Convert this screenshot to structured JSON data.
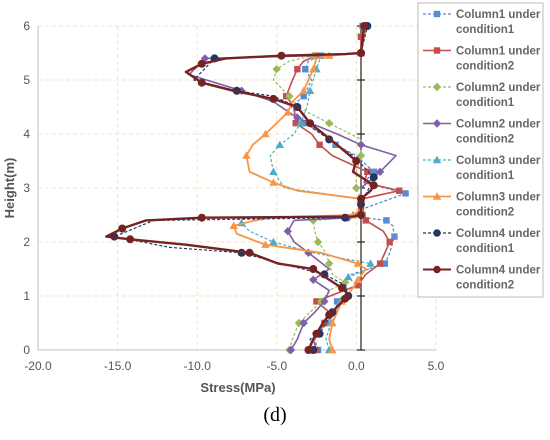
{
  "panel_label": "(d)",
  "chart_data": {
    "type": "line",
    "title": "",
    "xlabel": "Stress(MPa)",
    "ylabel": "Height(m)",
    "xlim": [
      -20.0,
      5.0
    ],
    "ylim": [
      0,
      6
    ],
    "xticks": [
      "-20.0",
      "-15.0",
      "-10.0",
      "-5.0",
      "0.0",
      "5.0"
    ],
    "yticks": [
      "0",
      "1",
      "2",
      "3",
      "4",
      "5",
      "6"
    ],
    "grid": true,
    "legend_position": "right",
    "series": [
      {
        "name": "Column1 under condition1",
        "color": "#5b8bd0",
        "marker": "square",
        "dash": true,
        "width": 1.3,
        "points": [
          [
            -2.7,
            0
          ],
          [
            -2.9,
            0.2
          ],
          [
            -2.2,
            0.5
          ],
          [
            -1.6,
            0.7
          ],
          [
            -1.5,
            0.9
          ],
          [
            -0.9,
            1.05
          ],
          [
            -1.1,
            1.2
          ],
          [
            -0.6,
            1.4
          ],
          [
            1.5,
            1.6
          ],
          [
            1.8,
            1.8
          ],
          [
            2.1,
            2.1
          ],
          [
            2.0,
            2.3
          ],
          [
            1.6,
            2.4
          ],
          [
            0.2,
            2.45
          ],
          [
            0.1,
            2.5
          ],
          [
            0.0,
            2.6
          ],
          [
            2.8,
            2.9
          ],
          [
            0.2,
            3.1
          ],
          [
            0.8,
            3.3
          ],
          [
            -0.3,
            3.6
          ],
          [
            -1.6,
            3.8
          ],
          [
            -2.3,
            4.0
          ],
          [
            -3.6,
            4.2
          ],
          [
            -4.4,
            4.5
          ],
          [
            -3.6,
            4.7
          ],
          [
            -3.1,
            5.0
          ],
          [
            -3.5,
            5.2
          ],
          [
            -3.3,
            5.35
          ],
          [
            -2.5,
            5.45
          ],
          [
            0.0,
            5.5
          ],
          [
            0.0,
            5.8
          ],
          [
            0.1,
            6.0
          ]
        ]
      },
      {
        "name": "Column1 under condition2",
        "color": "#c0504d",
        "marker": "square",
        "dash": false,
        "width": 1.6,
        "points": [
          [
            -2.8,
            0
          ],
          [
            -3.0,
            0.2
          ],
          [
            -2.3,
            0.5
          ],
          [
            -2.0,
            0.7
          ],
          [
            -2.8,
            0.9
          ],
          [
            -1.5,
            1.05
          ],
          [
            -0.2,
            1.2
          ],
          [
            0.3,
            1.4
          ],
          [
            1.2,
            1.6
          ],
          [
            1.5,
            1.8
          ],
          [
            1.8,
            2.0
          ],
          [
            1.4,
            2.2
          ],
          [
            0.3,
            2.4
          ],
          [
            0.1,
            2.48
          ],
          [
            0.0,
            2.6
          ],
          [
            0.1,
            2.8
          ],
          [
            2.4,
            2.95
          ],
          [
            0.2,
            3.1
          ],
          [
            0.4,
            3.3
          ],
          [
            -1.8,
            3.6
          ],
          [
            -2.6,
            3.8
          ],
          [
            -3.1,
            4.0
          ],
          [
            -4.1,
            4.2
          ],
          [
            -4.2,
            4.5
          ],
          [
            -4.7,
            4.7
          ],
          [
            -4.3,
            5.0
          ],
          [
            -4.0,
            5.2
          ],
          [
            -3.6,
            5.35
          ],
          [
            -2.8,
            5.45
          ],
          [
            0.0,
            5.5
          ],
          [
            0.0,
            5.8
          ],
          [
            0.2,
            6.0
          ]
        ]
      },
      {
        "name": "Column2 under condition1",
        "color": "#9bbb59",
        "marker": "diamond",
        "dash": true,
        "width": 1.2,
        "points": [
          [
            -4.5,
            0
          ],
          [
            -4.3,
            0.2
          ],
          [
            -3.9,
            0.5
          ],
          [
            -3.2,
            0.7
          ],
          [
            -2.5,
            0.9
          ],
          [
            -2.0,
            1.1
          ],
          [
            -1.0,
            1.25
          ],
          [
            -1.8,
            1.4
          ],
          [
            -2.0,
            1.6
          ],
          [
            -2.2,
            1.8
          ],
          [
            -2.7,
            2.0
          ],
          [
            -2.9,
            2.2
          ],
          [
            -3.0,
            2.4
          ],
          [
            -0.5,
            2.45
          ],
          [
            0.0,
            2.55
          ],
          [
            0.0,
            2.8
          ],
          [
            -0.3,
            3.0
          ],
          [
            -0.3,
            3.3
          ],
          [
            0.0,
            3.6
          ],
          [
            0.0,
            3.9
          ],
          [
            -2.0,
            4.2
          ],
          [
            -4.0,
            4.5
          ],
          [
            -4.5,
            4.7
          ],
          [
            -5.5,
            5.0
          ],
          [
            -5.3,
            5.2
          ],
          [
            -4.5,
            5.35
          ],
          [
            -3.0,
            5.45
          ],
          [
            0.0,
            5.5
          ],
          [
            0.4,
            6.0
          ]
        ]
      },
      {
        "name": "Column2 under condition2",
        "color": "#7f5fa8",
        "marker": "diamond",
        "dash": false,
        "width": 1.6,
        "points": [
          [
            -4.4,
            0
          ],
          [
            -4.0,
            0.2
          ],
          [
            -3.6,
            0.5
          ],
          [
            -2.9,
            0.7
          ],
          [
            -2.3,
            0.9
          ],
          [
            -2.0,
            1.1
          ],
          [
            -3.0,
            1.3
          ],
          [
            -2.0,
            1.5
          ],
          [
            -3.3,
            1.8
          ],
          [
            -4.2,
            2.0
          ],
          [
            -4.6,
            2.2
          ],
          [
            -4.2,
            2.4
          ],
          [
            -0.8,
            2.45
          ],
          [
            0.0,
            2.55
          ],
          [
            0.0,
            2.8
          ],
          [
            0.0,
            3.0
          ],
          [
            1.2,
            3.3
          ],
          [
            2.2,
            3.6
          ],
          [
            0.0,
            3.8
          ],
          [
            -1.5,
            4.0
          ],
          [
            -4.0,
            4.3
          ],
          [
            -5.5,
            4.6
          ],
          [
            -7.5,
            4.8
          ],
          [
            -10.8,
            5.1
          ],
          [
            -9.8,
            5.4
          ],
          [
            -3.0,
            5.45
          ],
          [
            0.0,
            5.5
          ],
          [
            0.2,
            6.0
          ]
        ]
      },
      {
        "name": "Column3 under condition1",
        "color": "#4bacc6",
        "marker": "triangle",
        "dash": true,
        "width": 1.2,
        "points": [
          [
            -2.0,
            0
          ],
          [
            -2.2,
            0.2
          ],
          [
            -1.9,
            0.5
          ],
          [
            -1.6,
            0.7
          ],
          [
            -1.3,
            0.9
          ],
          [
            -0.3,
            1.2
          ],
          [
            -0.8,
            1.35
          ],
          [
            0.5,
            1.5
          ],
          [
            0.6,
            1.6
          ],
          [
            -3.0,
            1.8
          ],
          [
            -5.5,
            2.0
          ],
          [
            -7.0,
            2.2
          ],
          [
            -7.5,
            2.35
          ],
          [
            -5.5,
            2.45
          ],
          [
            -0.5,
            2.5
          ],
          [
            0.0,
            2.6
          ],
          [
            0.0,
            2.8
          ],
          [
            -4.8,
            3.0
          ],
          [
            -5.5,
            3.3
          ],
          [
            -5.7,
            3.6
          ],
          [
            -5.1,
            3.8
          ],
          [
            -4.2,
            4.0
          ],
          [
            -3.8,
            4.2
          ],
          [
            -3.4,
            4.5
          ],
          [
            -3.2,
            4.8
          ],
          [
            -3.0,
            5.0
          ],
          [
            -2.8,
            5.2
          ],
          [
            -2.5,
            5.45
          ],
          [
            0.0,
            5.5
          ],
          [
            0.3,
            6.0
          ]
        ]
      },
      {
        "name": "Column3 under condition2",
        "color": "#f79646",
        "marker": "triangle",
        "dash": false,
        "width": 1.8,
        "points": [
          [
            -1.8,
            0
          ],
          [
            -2.0,
            0.2
          ],
          [
            -1.8,
            0.5
          ],
          [
            -1.5,
            0.7
          ],
          [
            -1.2,
            0.9
          ],
          [
            -0.5,
            1.15
          ],
          [
            -0.2,
            1.3
          ],
          [
            0.3,
            1.5
          ],
          [
            -0.2,
            1.6
          ],
          [
            -2.5,
            1.8
          ],
          [
            -6.0,
            1.95
          ],
          [
            -7.8,
            2.15
          ],
          [
            -8.0,
            2.3
          ],
          [
            -6.0,
            2.45
          ],
          [
            -0.5,
            2.5
          ],
          [
            0.0,
            2.6
          ],
          [
            0.0,
            2.8
          ],
          [
            -4.0,
            2.95
          ],
          [
            -5.5,
            3.1
          ],
          [
            -7.0,
            3.3
          ],
          [
            -7.2,
            3.6
          ],
          [
            -6.8,
            3.8
          ],
          [
            -6.0,
            4.0
          ],
          [
            -5.3,
            4.2
          ],
          [
            -4.6,
            4.4
          ],
          [
            -4.3,
            4.6
          ],
          [
            -3.6,
            4.8
          ],
          [
            -3.3,
            5.0
          ],
          [
            -3.0,
            5.2
          ],
          [
            -2.8,
            5.4
          ],
          [
            -2.0,
            5.45
          ],
          [
            0.0,
            5.5
          ],
          [
            0.3,
            6.0
          ]
        ]
      },
      {
        "name": "Column4 under condition1",
        "color": "#1f3864",
        "marker": "circle",
        "dash": true,
        "width": 1.2,
        "points": [
          [
            -3.0,
            0
          ],
          [
            -3.2,
            0.2
          ],
          [
            -2.6,
            0.3
          ],
          [
            -2.2,
            0.5
          ],
          [
            -1.8,
            0.7
          ],
          [
            -1.2,
            0.9
          ],
          [
            -0.8,
            1.0
          ],
          [
            -1.0,
            1.2
          ],
          [
            -2.3,
            1.4
          ],
          [
            -5.0,
            1.6
          ],
          [
            -7.5,
            1.8
          ],
          [
            -12.0,
            1.9
          ],
          [
            -15.5,
            2.1
          ],
          [
            -13.0,
            2.4
          ],
          [
            -1.0,
            2.45
          ],
          [
            0.0,
            2.5
          ],
          [
            0.0,
            2.7
          ],
          [
            0.5,
            3.0
          ],
          [
            0.8,
            3.2
          ],
          [
            -0.5,
            3.6
          ],
          [
            -2.0,
            3.9
          ],
          [
            -3.0,
            4.1
          ],
          [
            -4.0,
            4.5
          ],
          [
            -5.5,
            4.7
          ],
          [
            -7.8,
            4.8
          ],
          [
            -10.5,
            5.0
          ],
          [
            -9.2,
            5.4
          ],
          [
            -4.0,
            5.45
          ],
          [
            0.0,
            5.5
          ],
          [
            0.4,
            6.0
          ]
        ]
      },
      {
        "name": "Column4 under condition2",
        "color": "#772222",
        "marker": "circle",
        "dash": false,
        "width": 2.4,
        "points": [
          [
            -3.3,
            0
          ],
          [
            -3.0,
            0.2
          ],
          [
            -2.8,
            0.3
          ],
          [
            -2.4,
            0.5
          ],
          [
            -2.0,
            0.65
          ],
          [
            -1.5,
            0.8
          ],
          [
            -1.0,
            0.95
          ],
          [
            -0.7,
            1.0
          ],
          [
            -1.2,
            1.15
          ],
          [
            -2.0,
            1.3
          ],
          [
            -3.0,
            1.5
          ],
          [
            -5.2,
            1.6
          ],
          [
            -7.0,
            1.8
          ],
          [
            -11.0,
            1.95
          ],
          [
            -14.5,
            2.05
          ],
          [
            -16.0,
            2.1
          ],
          [
            -15.0,
            2.25
          ],
          [
            -13.5,
            2.4
          ],
          [
            -10.0,
            2.45
          ],
          [
            -0.5,
            2.47
          ],
          [
            0.0,
            2.5
          ],
          [
            0.0,
            2.7
          ],
          [
            0.0,
            2.8
          ],
          [
            0.6,
            2.95
          ],
          [
            0.8,
            3.05
          ],
          [
            -0.5,
            3.3
          ],
          [
            -0.3,
            3.5
          ],
          [
            -1.5,
            3.8
          ],
          [
            -3.2,
            4.2
          ],
          [
            -4.0,
            4.5
          ],
          [
            -5.5,
            4.65
          ],
          [
            -8.0,
            4.8
          ],
          [
            -10.0,
            4.95
          ],
          [
            -11.0,
            5.15
          ],
          [
            -10.0,
            5.3
          ],
          [
            -8.5,
            5.4
          ],
          [
            -5.0,
            5.45
          ],
          [
            -1.0,
            5.48
          ],
          [
            0.0,
            5.5
          ],
          [
            0.2,
            6.0
          ]
        ]
      }
    ]
  }
}
